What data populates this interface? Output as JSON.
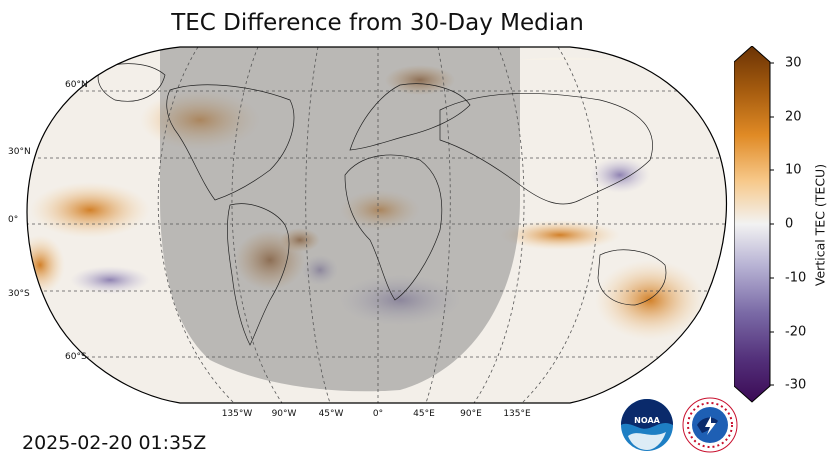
{
  "title": "TEC Difference from 30-Day Median",
  "timestamp": "2025-02-20 01:35Z",
  "latitude_labels": [
    "60°N",
    "30°N",
    "0°",
    "30°S",
    "60°S"
  ],
  "longitude_labels": [
    "135°W",
    "90°W",
    "45°W",
    "0°",
    "45°E",
    "90°E",
    "135°E"
  ],
  "colorbar": {
    "label": "Vertical TEC (TECU)",
    "ticks": [
      "30",
      "20",
      "10",
      "0",
      "-10",
      "-20",
      "-30"
    ],
    "min": -30,
    "max": 30,
    "colors": [
      "#3b0a55",
      "#53307a",
      "#7a6aa6",
      "#b6b1d3",
      "#f2f2f2",
      "#f7c98b",
      "#e08a25",
      "#a35a0e",
      "#6b3305"
    ]
  },
  "logos": {
    "noaa": "NOAA",
    "nws": "NATIONAL WEATHER SERVICE"
  }
}
